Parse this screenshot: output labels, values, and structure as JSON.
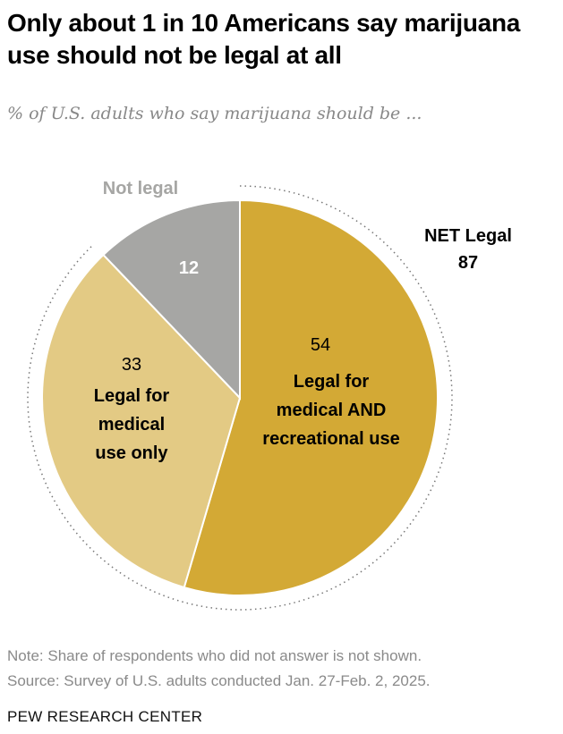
{
  "title": "Only about 1 in 10 Americans say marijuana use should not be legal at all",
  "subtitle": "% of U.S. adults who say marijuana should be ...",
  "chart_data": {
    "type": "pie",
    "start": "top, clockwise",
    "slices": [
      {
        "label": "Legal for medical AND recreational use",
        "label_lines": [
          "Legal for",
          "medical AND",
          "recreational use"
        ],
        "value": 54,
        "color": "#D3A935"
      },
      {
        "label": "Legal for medical use only",
        "label_lines": [
          "Legal for",
          "medical",
          "use only"
        ],
        "value": 33,
        "color": "#E3CA84"
      },
      {
        "label": "Not legal",
        "label_lines": [],
        "value": 12,
        "color": "#A6A6A4"
      }
    ],
    "annotations": {
      "not_legal_label": "Not legal",
      "net_label": "NET Legal",
      "net_value": "87"
    }
  },
  "note": "Note: Share of respondents who did not answer is not shown.",
  "source": "Source: Survey of U.S. adults conducted Jan. 27-Feb. 2, 2025.",
  "footer": "PEW RESEARCH CENTER"
}
